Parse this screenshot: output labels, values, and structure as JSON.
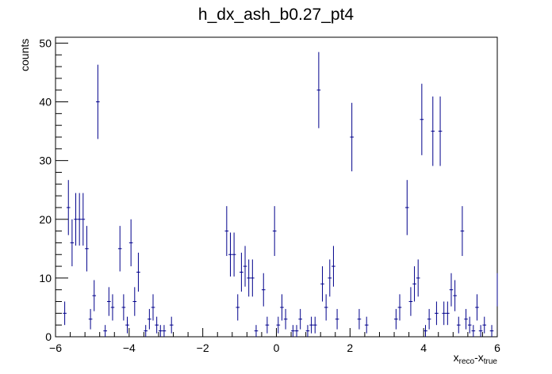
{
  "chart_data": {
    "type": "scatter",
    "title": "h_dx_ash_b0.27_pt4",
    "ylabel": "counts",
    "xlabel_main": "x",
    "xlabel_sub1": "reco",
    "xlabel_mid": "-x",
    "xlabel_sub2": "true",
    "xlim": [
      -6,
      6
    ],
    "ylim": [
      0,
      51
    ],
    "x_ticks": [
      -6,
      -4,
      -2,
      0,
      2,
      4,
      6
    ],
    "x_tick_labels": [
      "−6",
      "−4",
      "−2",
      "0",
      "2",
      "4",
      "6"
    ],
    "y_ticks": [
      0,
      10,
      20,
      30,
      40,
      50
    ],
    "y_tick_labels": [
      "0",
      "10",
      "20",
      "30",
      "40",
      "50"
    ],
    "bin_width": 0.1,
    "grid": false,
    "legend": "none",
    "line_color": "#00008b",
    "points": [
      {
        "x": -5.75,
        "y": 4
      },
      {
        "x": -5.65,
        "y": 22
      },
      {
        "x": -5.55,
        "y": 16
      },
      {
        "x": -5.45,
        "y": 20
      },
      {
        "x": -5.35,
        "y": 20
      },
      {
        "x": -5.25,
        "y": 20
      },
      {
        "x": -5.15,
        "y": 15
      },
      {
        "x": -5.05,
        "y": 3
      },
      {
        "x": -4.95,
        "y": 7
      },
      {
        "x": -4.85,
        "y": 40
      },
      {
        "x": -4.65,
        "y": 1
      },
      {
        "x": -4.55,
        "y": 6
      },
      {
        "x": -4.45,
        "y": 5
      },
      {
        "x": -4.25,
        "y": 15
      },
      {
        "x": -4.15,
        "y": 5
      },
      {
        "x": -4.05,
        "y": 2
      },
      {
        "x": -3.95,
        "y": 16
      },
      {
        "x": -3.85,
        "y": 6
      },
      {
        "x": -3.75,
        "y": 11
      },
      {
        "x": -3.55,
        "y": 1
      },
      {
        "x": -3.45,
        "y": 3
      },
      {
        "x": -3.35,
        "y": 5
      },
      {
        "x": -3.25,
        "y": 2
      },
      {
        "x": -3.15,
        "y": 1
      },
      {
        "x": -3.05,
        "y": 1
      },
      {
        "x": -2.85,
        "y": 2
      },
      {
        "x": -1.35,
        "y": 18
      },
      {
        "x": -1.25,
        "y": 14
      },
      {
        "x": -1.15,
        "y": 14
      },
      {
        "x": -1.05,
        "y": 5
      },
      {
        "x": -0.95,
        "y": 11
      },
      {
        "x": -0.85,
        "y": 12
      },
      {
        "x": -0.75,
        "y": 10
      },
      {
        "x": -0.65,
        "y": 10
      },
      {
        "x": -0.55,
        "y": 1
      },
      {
        "x": -0.35,
        "y": 8
      },
      {
        "x": -0.25,
        "y": 2
      },
      {
        "x": -0.05,
        "y": 18
      },
      {
        "x": 0.05,
        "y": 2
      },
      {
        "x": 0.15,
        "y": 5
      },
      {
        "x": 0.25,
        "y": 3
      },
      {
        "x": 0.45,
        "y": 1
      },
      {
        "x": 0.55,
        "y": 1
      },
      {
        "x": 0.65,
        "y": 3
      },
      {
        "x": 0.85,
        "y": 1
      },
      {
        "x": 0.95,
        "y": 2
      },
      {
        "x": 1.05,
        "y": 2
      },
      {
        "x": 1.15,
        "y": 42
      },
      {
        "x": 1.25,
        "y": 9
      },
      {
        "x": 1.35,
        "y": 5
      },
      {
        "x": 1.45,
        "y": 10
      },
      {
        "x": 1.55,
        "y": 12
      },
      {
        "x": 1.65,
        "y": 3
      },
      {
        "x": 2.05,
        "y": 34
      },
      {
        "x": 2.25,
        "y": 3
      },
      {
        "x": 2.45,
        "y": 2
      },
      {
        "x": 3.25,
        "y": 3
      },
      {
        "x": 3.35,
        "y": 5
      },
      {
        "x": 3.55,
        "y": 22
      },
      {
        "x": 3.65,
        "y": 6
      },
      {
        "x": 3.75,
        "y": 9
      },
      {
        "x": 3.85,
        "y": 10
      },
      {
        "x": 3.95,
        "y": 37
      },
      {
        "x": 4.05,
        "y": 1
      },
      {
        "x": 4.15,
        "y": 3
      },
      {
        "x": 4.25,
        "y": 35
      },
      {
        "x": 4.35,
        "y": 4
      },
      {
        "x": 4.45,
        "y": 35
      },
      {
        "x": 4.55,
        "y": 4
      },
      {
        "x": 4.65,
        "y": 4
      },
      {
        "x": 4.75,
        "y": 8
      },
      {
        "x": 4.85,
        "y": 7
      },
      {
        "x": 4.95,
        "y": 2
      },
      {
        "x": 5.05,
        "y": 18
      },
      {
        "x": 5.15,
        "y": 3
      },
      {
        "x": 5.25,
        "y": 2
      },
      {
        "x": 5.35,
        "y": 1
      },
      {
        "x": 5.45,
        "y": 5
      },
      {
        "x": 5.55,
        "y": 1
      },
      {
        "x": 5.65,
        "y": 2
      },
      {
        "x": 5.85,
        "y": 1
      },
      {
        "x": 6.05,
        "y": 8
      }
    ]
  }
}
